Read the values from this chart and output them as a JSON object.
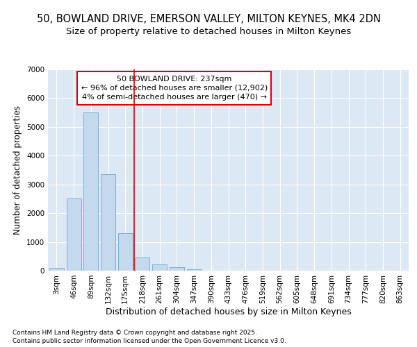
{
  "title_line1": "50, BOWLAND DRIVE, EMERSON VALLEY, MILTON KEYNES, MK4 2DN",
  "title_line2": "Size of property relative to detached houses in Milton Keynes",
  "xlabel": "Distribution of detached houses by size in Milton Keynes",
  "ylabel": "Number of detached properties",
  "categories": [
    "3sqm",
    "46sqm",
    "89sqm",
    "132sqm",
    "175sqm",
    "218sqm",
    "261sqm",
    "304sqm",
    "347sqm",
    "390sqm",
    "433sqm",
    "476sqm",
    "519sqm",
    "562sqm",
    "605sqm",
    "648sqm",
    "691sqm",
    "734sqm",
    "777sqm",
    "820sqm",
    "863sqm"
  ],
  "values": [
    100,
    2500,
    5500,
    3350,
    1300,
    450,
    220,
    110,
    55,
    0,
    0,
    0,
    0,
    0,
    0,
    0,
    0,
    0,
    0,
    0,
    0
  ],
  "bar_color": "#c5d9ee",
  "bar_edge_color": "#7bafd4",
  "red_line_idx": 5,
  "annotation_text": "50 BOWLAND DRIVE: 237sqm\n← 96% of detached houses are smaller (12,902)\n4% of semi-detached houses are larger (470) →",
  "annotation_box_color": "#dd0000",
  "annotation_fill": "#ffffff",
  "ylim": [
    0,
    7000
  ],
  "yticks": [
    0,
    1000,
    2000,
    3000,
    4000,
    5000,
    6000,
    7000
  ],
  "plot_bg_color": "#dde8f5",
  "fig_bg_color": "#ffffff",
  "grid_color": "#ffffff",
  "footer_line1": "Contains HM Land Registry data © Crown copyright and database right 2025.",
  "footer_line2": "Contains public sector information licensed under the Open Government Licence v3.0.",
  "title_fontsize": 10.5,
  "subtitle_fontsize": 9.5,
  "tick_fontsize": 7.5,
  "xlabel_fontsize": 9,
  "ylabel_fontsize": 8.5,
  "footer_fontsize": 6.5,
  "annotation_fontsize": 8
}
